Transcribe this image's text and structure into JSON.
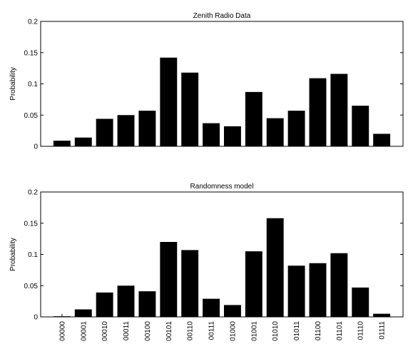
{
  "chart_data": [
    {
      "type": "bar",
      "title": "Zenith Radio Data",
      "xlabel": "",
      "ylabel": "Probability",
      "ylim": [
        0,
        0.2
      ],
      "yticks": [
        "0",
        "0.05",
        "0.1",
        "0.15",
        "0.2"
      ],
      "categories": [
        "00000",
        "00001",
        "00010",
        "00011",
        "00100",
        "00101",
        "00110",
        "00111",
        "01000",
        "01001",
        "01010",
        "01011",
        "01100",
        "01101",
        "01110",
        "01111"
      ],
      "values": [
        0.009,
        0.014,
        0.044,
        0.05,
        0.057,
        0.142,
        0.118,
        0.037,
        0.032,
        0.087,
        0.045,
        0.057,
        0.109,
        0.116,
        0.065,
        0.02
      ],
      "bar_color": "#000000",
      "grid": false
    },
    {
      "type": "bar",
      "title": "Randomness model",
      "xlabel": "",
      "ylabel": "Probability",
      "ylim": [
        0,
        0.2
      ],
      "yticks": [
        "0",
        "0.05",
        "0.1",
        "0.15",
        "0.2"
      ],
      "categories": [
        "00000",
        "00001",
        "00010",
        "00011",
        "00100",
        "00101",
        "00110",
        "00111",
        "01000",
        "01001",
        "01010",
        "01011",
        "01100",
        "01101",
        "01110",
        "01111"
      ],
      "values": [
        0.001,
        0.012,
        0.039,
        0.05,
        0.041,
        0.12,
        0.107,
        0.029,
        0.019,
        0.105,
        0.158,
        0.082,
        0.086,
        0.102,
        0.047,
        0.005
      ],
      "bar_color": "#000000",
      "grid": false
    }
  ]
}
